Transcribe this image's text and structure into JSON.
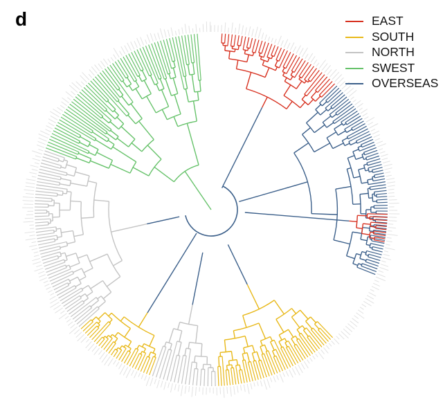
{
  "panel_label": "d",
  "legend": [
    {
      "label": "EAST",
      "color": "#d7301f"
    },
    {
      "label": "SOUTH",
      "color": "#e8b818"
    },
    {
      "label": "NORTH",
      "color": "#c3c3c3"
    },
    {
      "label": "SWEST",
      "color": "#66c26a"
    },
    {
      "label": "OVERSEAS",
      "color": "#3b5f8a"
    }
  ],
  "clades": [
    {
      "region": "EAST",
      "start": 3,
      "end": 45,
      "tips": 38
    },
    {
      "region": "OVERSEAS",
      "start": 45,
      "end": 112,
      "tips": 70
    },
    {
      "region": "EAST",
      "start": 91,
      "end": 101,
      "tips": 10
    },
    {
      "region": "SOUTH",
      "start": 136,
      "end": 178,
      "tips": 45
    },
    {
      "region": "NORTH",
      "start": 178,
      "end": 200,
      "tips": 18
    },
    {
      "region": "SOUTH",
      "start": 200,
      "end": 228,
      "tips": 28
    },
    {
      "region": "NORTH",
      "start": 228,
      "end": 290,
      "tips": 60
    },
    {
      "region": "SWEST",
      "start": 290,
      "end": 356,
      "tips": 65
    }
  ]
}
